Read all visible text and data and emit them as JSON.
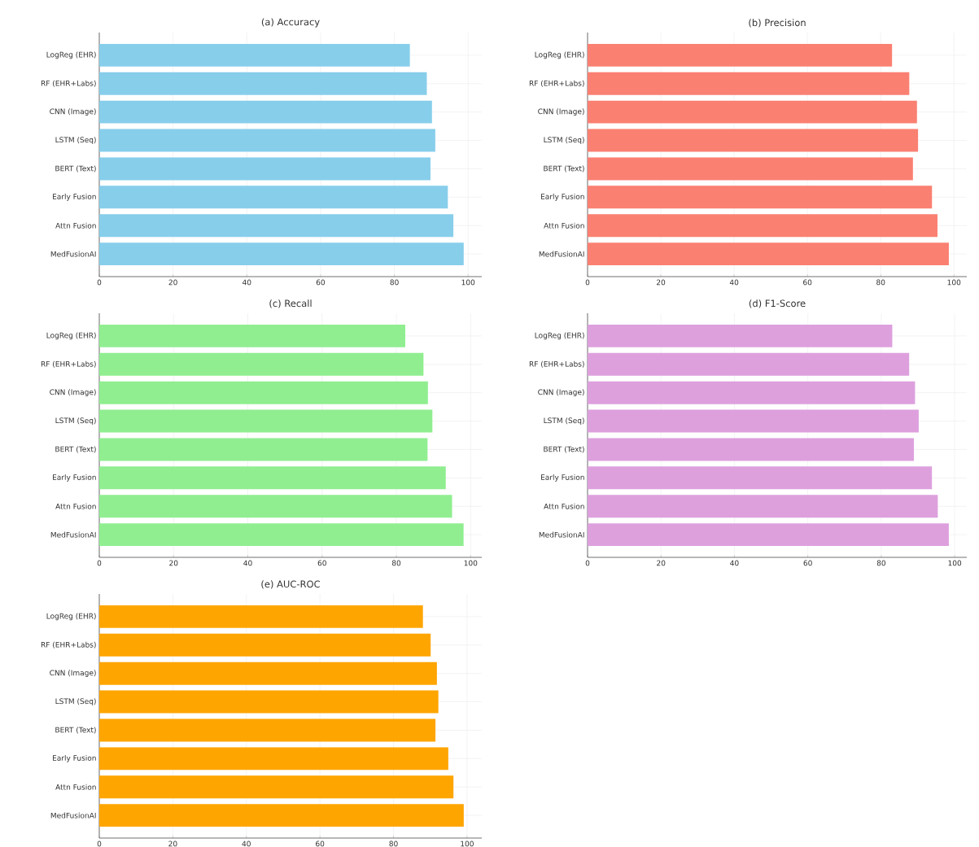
{
  "chart_data": [
    {
      "type": "bar",
      "orientation": "horizontal",
      "title": "(a) Accuracy",
      "categories": [
        "LogReg (EHR)",
        "RF (EHR+Labs)",
        "CNN (Image)",
        "LSTM (Seq)",
        "BERT (Text)",
        "Early Fusion",
        "Attn Fusion",
        "MedFusionAI"
      ],
      "values": [
        84.2,
        88.8,
        90.2,
        91.1,
        89.8,
        94.5,
        96.0,
        98.8
      ],
      "color": "#87ceeb",
      "xlim": [
        0,
        103.7
      ],
      "xticks": [
        0,
        20,
        40,
        60,
        80,
        100
      ],
      "grid": true
    },
    {
      "type": "bar",
      "orientation": "horizontal",
      "title": "(b) Precision",
      "categories": [
        "LogReg (EHR)",
        "RF (EHR+Labs)",
        "CNN (Image)",
        "LSTM (Seq)",
        "BERT (Text)",
        "Early Fusion",
        "Attn Fusion",
        "MedFusionAI"
      ],
      "values": [
        83.1,
        87.8,
        89.9,
        90.2,
        88.8,
        94.0,
        95.5,
        98.6
      ],
      "color": "#fa8072",
      "xlim": [
        0,
        103.5
      ],
      "xticks": [
        0,
        20,
        40,
        60,
        80,
        100
      ],
      "grid": true
    },
    {
      "type": "bar",
      "orientation": "horizontal",
      "title": "(c) Recall",
      "categories": [
        "LogReg (EHR)",
        "RF (EHR+Labs)",
        "CNN (Image)",
        "LSTM (Seq)",
        "BERT (Text)",
        "Early Fusion",
        "Attn Fusion",
        "MedFusionAI"
      ],
      "values": [
        82.4,
        87.3,
        88.5,
        89.7,
        88.4,
        93.3,
        95.0,
        98.1
      ],
      "color": "#90ee90",
      "xlim": [
        0,
        103.0
      ],
      "xticks": [
        0,
        20,
        40,
        60,
        80,
        100
      ],
      "grid": true
    },
    {
      "type": "bar",
      "orientation": "horizontal",
      "title": "(d) F1-Score",
      "categories": [
        "LogReg (EHR)",
        "RF (EHR+Labs)",
        "CNN (Image)",
        "LSTM (Seq)",
        "BERT (Text)",
        "Early Fusion",
        "Attn Fusion",
        "MedFusionAI"
      ],
      "values": [
        83.0,
        87.6,
        89.2,
        90.2,
        88.9,
        93.8,
        95.4,
        98.4
      ],
      "color": "#dda0dd",
      "xlim": [
        0,
        103.3
      ],
      "xticks": [
        0,
        20,
        40,
        60,
        80,
        100
      ],
      "grid": true
    },
    {
      "type": "bar",
      "orientation": "horizontal",
      "title": "(e) AUC-ROC",
      "categories": [
        "LogReg (EHR)",
        "RF (EHR+Labs)",
        "CNN (Image)",
        "LSTM (Seq)",
        "BERT (Text)",
        "Early Fusion",
        "Attn Fusion",
        "MedFusionAI"
      ],
      "values": [
        88.0,
        90.1,
        91.8,
        92.2,
        91.4,
        94.9,
        96.3,
        99.1
      ],
      "color": "#ffa500",
      "xlim": [
        0,
        104.0
      ],
      "xticks": [
        0,
        20,
        40,
        60,
        80,
        100
      ],
      "grid": true
    }
  ]
}
